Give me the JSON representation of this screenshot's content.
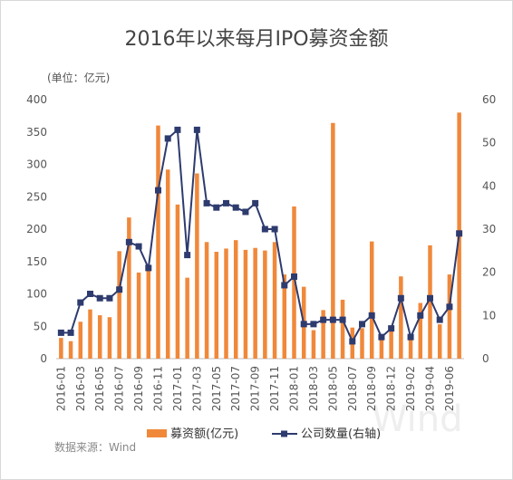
{
  "chart_data": {
    "type": "bar",
    "title": "2016年以来每月IPO募资金额",
    "unit_label": "(单位：亿元)",
    "source_label": "数据来源：Wind",
    "watermark": "Wind",
    "colors": {
      "bar": "#f0883a",
      "line": "#2e3b6e",
      "grid": "#e4e4e4"
    },
    "categories": [
      "2016-01",
      "2016-02",
      "2016-03",
      "2016-04",
      "2016-05",
      "2016-06",
      "2016-07",
      "2016-08",
      "2016-09",
      "2016-10",
      "2016-11",
      "2016-12",
      "2017-01",
      "2017-02",
      "2017-03",
      "2017-04",
      "2017-05",
      "2017-06",
      "2017-07",
      "2017-08",
      "2017-09",
      "2017-10",
      "2017-11",
      "2017-12",
      "2018-01",
      "2018-02",
      "2018-03",
      "2018-04",
      "2018-05",
      "2018-06",
      "2018-07",
      "2018-08",
      "2018-09",
      "2018-10",
      "2018-12",
      "2019-01",
      "2019-02",
      "2019-03",
      "2019-04",
      "2019-05",
      "2019-06",
      "2019-07"
    ],
    "tick_labels": [
      "2016-01",
      "2016-03",
      "2016-05",
      "2016-07",
      "2016-09",
      "2016-11",
      "2017-01",
      "2017-03",
      "2017-05",
      "2017-07",
      "2017-09",
      "2017-11",
      "2018-01",
      "2018-03",
      "2018-05",
      "2018-07",
      "2018-09",
      "2018-12",
      "2019-02",
      "2019-04",
      "2019-06"
    ],
    "series": [
      {
        "name": "募资额(亿元)",
        "type": "bar",
        "axis": "left",
        "values": [
          32,
          27,
          57,
          76,
          67,
          64,
          166,
          218,
          133,
          137,
          360,
          292,
          238,
          125,
          286,
          180,
          165,
          170,
          183,
          168,
          171,
          167,
          180,
          130,
          235,
          111,
          44,
          75,
          364,
          91,
          48,
          47,
          181,
          37,
          50,
          127,
          37,
          86,
          175,
          53,
          130,
          380
        ]
      },
      {
        "name": "公司数量(右轴)",
        "type": "line",
        "axis": "right",
        "values": [
          6,
          6,
          13,
          15,
          14,
          14,
          16,
          27,
          26,
          21,
          39,
          51,
          53,
          24,
          53,
          36,
          35,
          36,
          35,
          34,
          36,
          30,
          30,
          17,
          19,
          8,
          8,
          9,
          9,
          9,
          4,
          8,
          10,
          5,
          7,
          14,
          5,
          10,
          14,
          9,
          12,
          29
        ]
      }
    ],
    "y_left": {
      "min": 0,
      "max": 400,
      "ticks": [
        0,
        50,
        100,
        150,
        200,
        250,
        300,
        350,
        400
      ]
    },
    "y_right": {
      "min": 0,
      "max": 60,
      "ticks": [
        0,
        10,
        20,
        30,
        40,
        50,
        60
      ]
    },
    "legend_placement": "bottom",
    "grid": false
  }
}
